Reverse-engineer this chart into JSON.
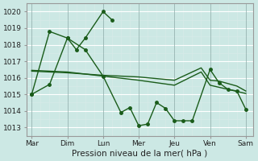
{
  "background_color": "#cce8e4",
  "grid_color": "#b0d4d0",
  "line_color": "#1a5c1a",
  "x_labels": [
    "Mar",
    "Dim",
    "Lun",
    "Mer",
    "Jeu",
    "Ven",
    "Sam"
  ],
  "ylim": [
    1012.5,
    1020.5
  ],
  "yticks": [
    1013,
    1014,
    1015,
    1016,
    1017,
    1018,
    1019,
    1020
  ],
  "xlabel": "Pression niveau de la mer( hPa )",
  "line1_x": [
    0,
    0.5,
    1.0,
    1.25,
    1.5,
    2.0,
    2.25
  ],
  "line1_y": [
    1015.0,
    1018.8,
    1018.4,
    1017.7,
    1018.4,
    1020.0,
    1019.5
  ],
  "line2_x": [
    0,
    0.5,
    1.0,
    1.5,
    2.0,
    2.5,
    2.75,
    3.0,
    3.25,
    3.5,
    3.75,
    4.0,
    4.25,
    4.5,
    5.0,
    5.25,
    5.5,
    5.75,
    6.0
  ],
  "line2_y": [
    1015.0,
    1015.6,
    1018.4,
    1017.7,
    1016.1,
    1013.9,
    1014.2,
    1013.1,
    1013.2,
    1014.5,
    1014.15,
    1013.4,
    1013.4,
    1013.4,
    1016.5,
    1015.7,
    1015.3,
    1015.2,
    1014.1
  ],
  "line3_x": [
    0,
    1,
    2,
    2.5,
    3,
    4,
    4.75,
    5,
    5.25,
    5.75,
    6
  ],
  "line3_y": [
    1016.4,
    1016.3,
    1016.15,
    1016.1,
    1016.05,
    1015.85,
    1016.6,
    1015.85,
    1015.8,
    1015.5,
    1015.2
  ],
  "line4_x": [
    0,
    1,
    2,
    3,
    4,
    4.75,
    5,
    6
  ],
  "line4_y": [
    1016.45,
    1016.35,
    1016.1,
    1015.85,
    1015.55,
    1016.35,
    1015.55,
    1015.05
  ]
}
